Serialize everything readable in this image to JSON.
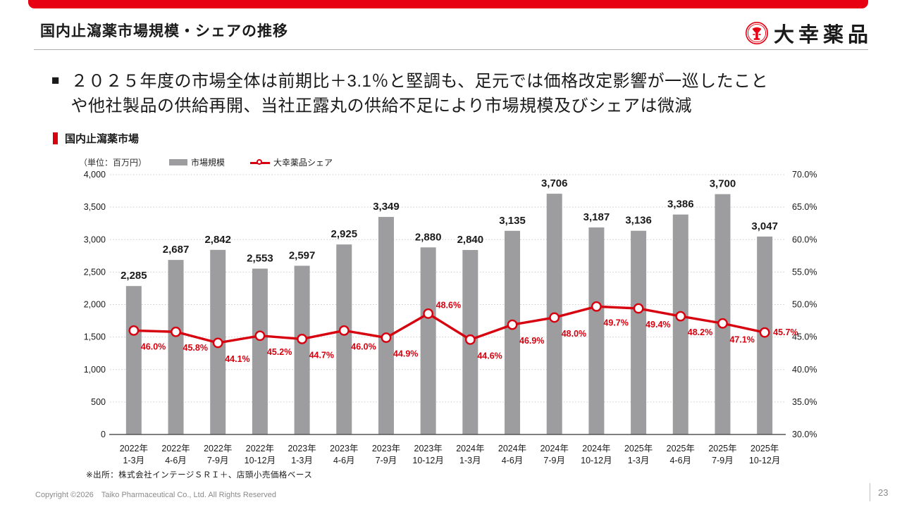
{
  "colors": {
    "accent_red": "#e60012",
    "line_red": "#d7000f",
    "bar_gray": "#9d9d9f",
    "grid_gray": "#cbcbcb",
    "axis_dark": "#555555",
    "text_dark": "#1a1a1a",
    "footer_gray": "#8a8a8a"
  },
  "header": {
    "title": "国内止瀉薬市場規模・シェアの推移",
    "logo_text": "大幸薬品",
    "logo_icon": "trumpet-emblem"
  },
  "summary": {
    "bullet": "■",
    "line1": "２０２５年度の市場全体は前期比＋3.1％と堅調も、足元では価格改定影響が一巡したこと",
    "line2": "や他社製品の供給再開、当社正露丸の供給不足により市場規模及びシェアは微減"
  },
  "chart_section": {
    "label": "国内止瀉薬市場"
  },
  "chart_data": {
    "type": "bar+line combo",
    "unit_note": "（単位：百万円）",
    "legend": [
      {
        "name": "市場規模",
        "marker": "gray-bar"
      },
      {
        "name": "大幸薬品シェア",
        "marker": "red-line-circle"
      }
    ],
    "categories": [
      {
        "year": "2022年",
        "months": "1-3月"
      },
      {
        "year": "2022年",
        "months": "4-6月"
      },
      {
        "year": "2022年",
        "months": "7-9月"
      },
      {
        "year": "2022年",
        "months": "10-12月"
      },
      {
        "year": "2023年",
        "months": "1-3月"
      },
      {
        "year": "2023年",
        "months": "4-6月"
      },
      {
        "year": "2023年",
        "months": "7-9月"
      },
      {
        "year": "2023年",
        "months": "10-12月"
      },
      {
        "year": "2024年",
        "months": "1-3月"
      },
      {
        "year": "2024年",
        "months": "4-6月"
      },
      {
        "year": "2024年",
        "months": "7-9月"
      },
      {
        "year": "2024年",
        "months": "10-12月"
      },
      {
        "year": "2025年",
        "months": "1-3月"
      },
      {
        "year": "2025年",
        "months": "4-6月"
      },
      {
        "year": "2025年",
        "months": "7-9月"
      },
      {
        "year": "2025年",
        "months": "10-12月"
      }
    ],
    "series": [
      {
        "name": "市場規模",
        "type": "bar",
        "axis": "left",
        "values": [
          2285,
          2687,
          2842,
          2553,
          2597,
          2925,
          3349,
          2880,
          2840,
          3135,
          3706,
          3187,
          3136,
          3386,
          3700,
          3047
        ]
      },
      {
        "name": "大幸薬品シェア",
        "type": "line",
        "axis": "right",
        "values": [
          46.0,
          45.8,
          44.1,
          45.2,
          44.7,
          46.0,
          44.9,
          48.6,
          44.6,
          46.9,
          48.0,
          49.7,
          49.4,
          48.2,
          47.1,
          45.7
        ],
        "label_pos": [
          "below",
          "below",
          "below",
          "below",
          "below",
          "below",
          "below",
          "above",
          "below",
          "below",
          "below",
          "below",
          "below",
          "below",
          "below",
          "right"
        ]
      }
    ],
    "left_axis": {
      "min": 0,
      "max": 4000,
      "step": 500
    },
    "right_axis": {
      "min": 30,
      "max": 70,
      "step": 5,
      "suffix": "%"
    },
    "grid": "dotted horizontal lines, legend top"
  },
  "footnote": "※出所：株式会社インテージＳＲＩ＋、店頭小売価格ベース",
  "footer": {
    "copyright": "Copyright ©2026　Taiko Pharmaceutical Co., Ltd. All Rights Reserved",
    "page": "23"
  }
}
